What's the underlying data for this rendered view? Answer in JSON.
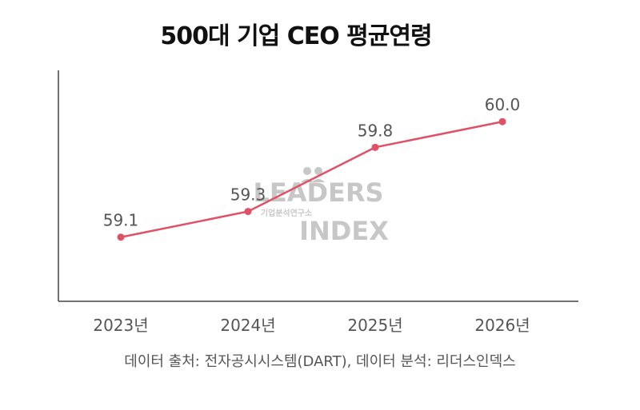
{
  "chart_data": {
    "type": "line",
    "title": "500대 기업 CEO 평균연령",
    "categories": [
      "2023년",
      "2024년",
      "2025년",
      "2026년"
    ],
    "series": [
      {
        "values": [
          59.1,
          59.3,
          59.8,
          60.0
        ],
        "color": "#e05166"
      }
    ],
    "data_labels": [
      "59.1",
      "59.3",
      "59.8",
      "60.0"
    ],
    "ylim": [
      58.6,
      60.4
    ],
    "grid": false,
    "xlabel": "",
    "ylabel": ""
  },
  "watermark": {
    "line1": "LEADERS",
    "subtitle": "기업분석연구소",
    "line2": "INDEX"
  },
  "source_note": "데이터 출처: 전자공시시스템(DART), 데이터 분석: 리더스인덱스"
}
